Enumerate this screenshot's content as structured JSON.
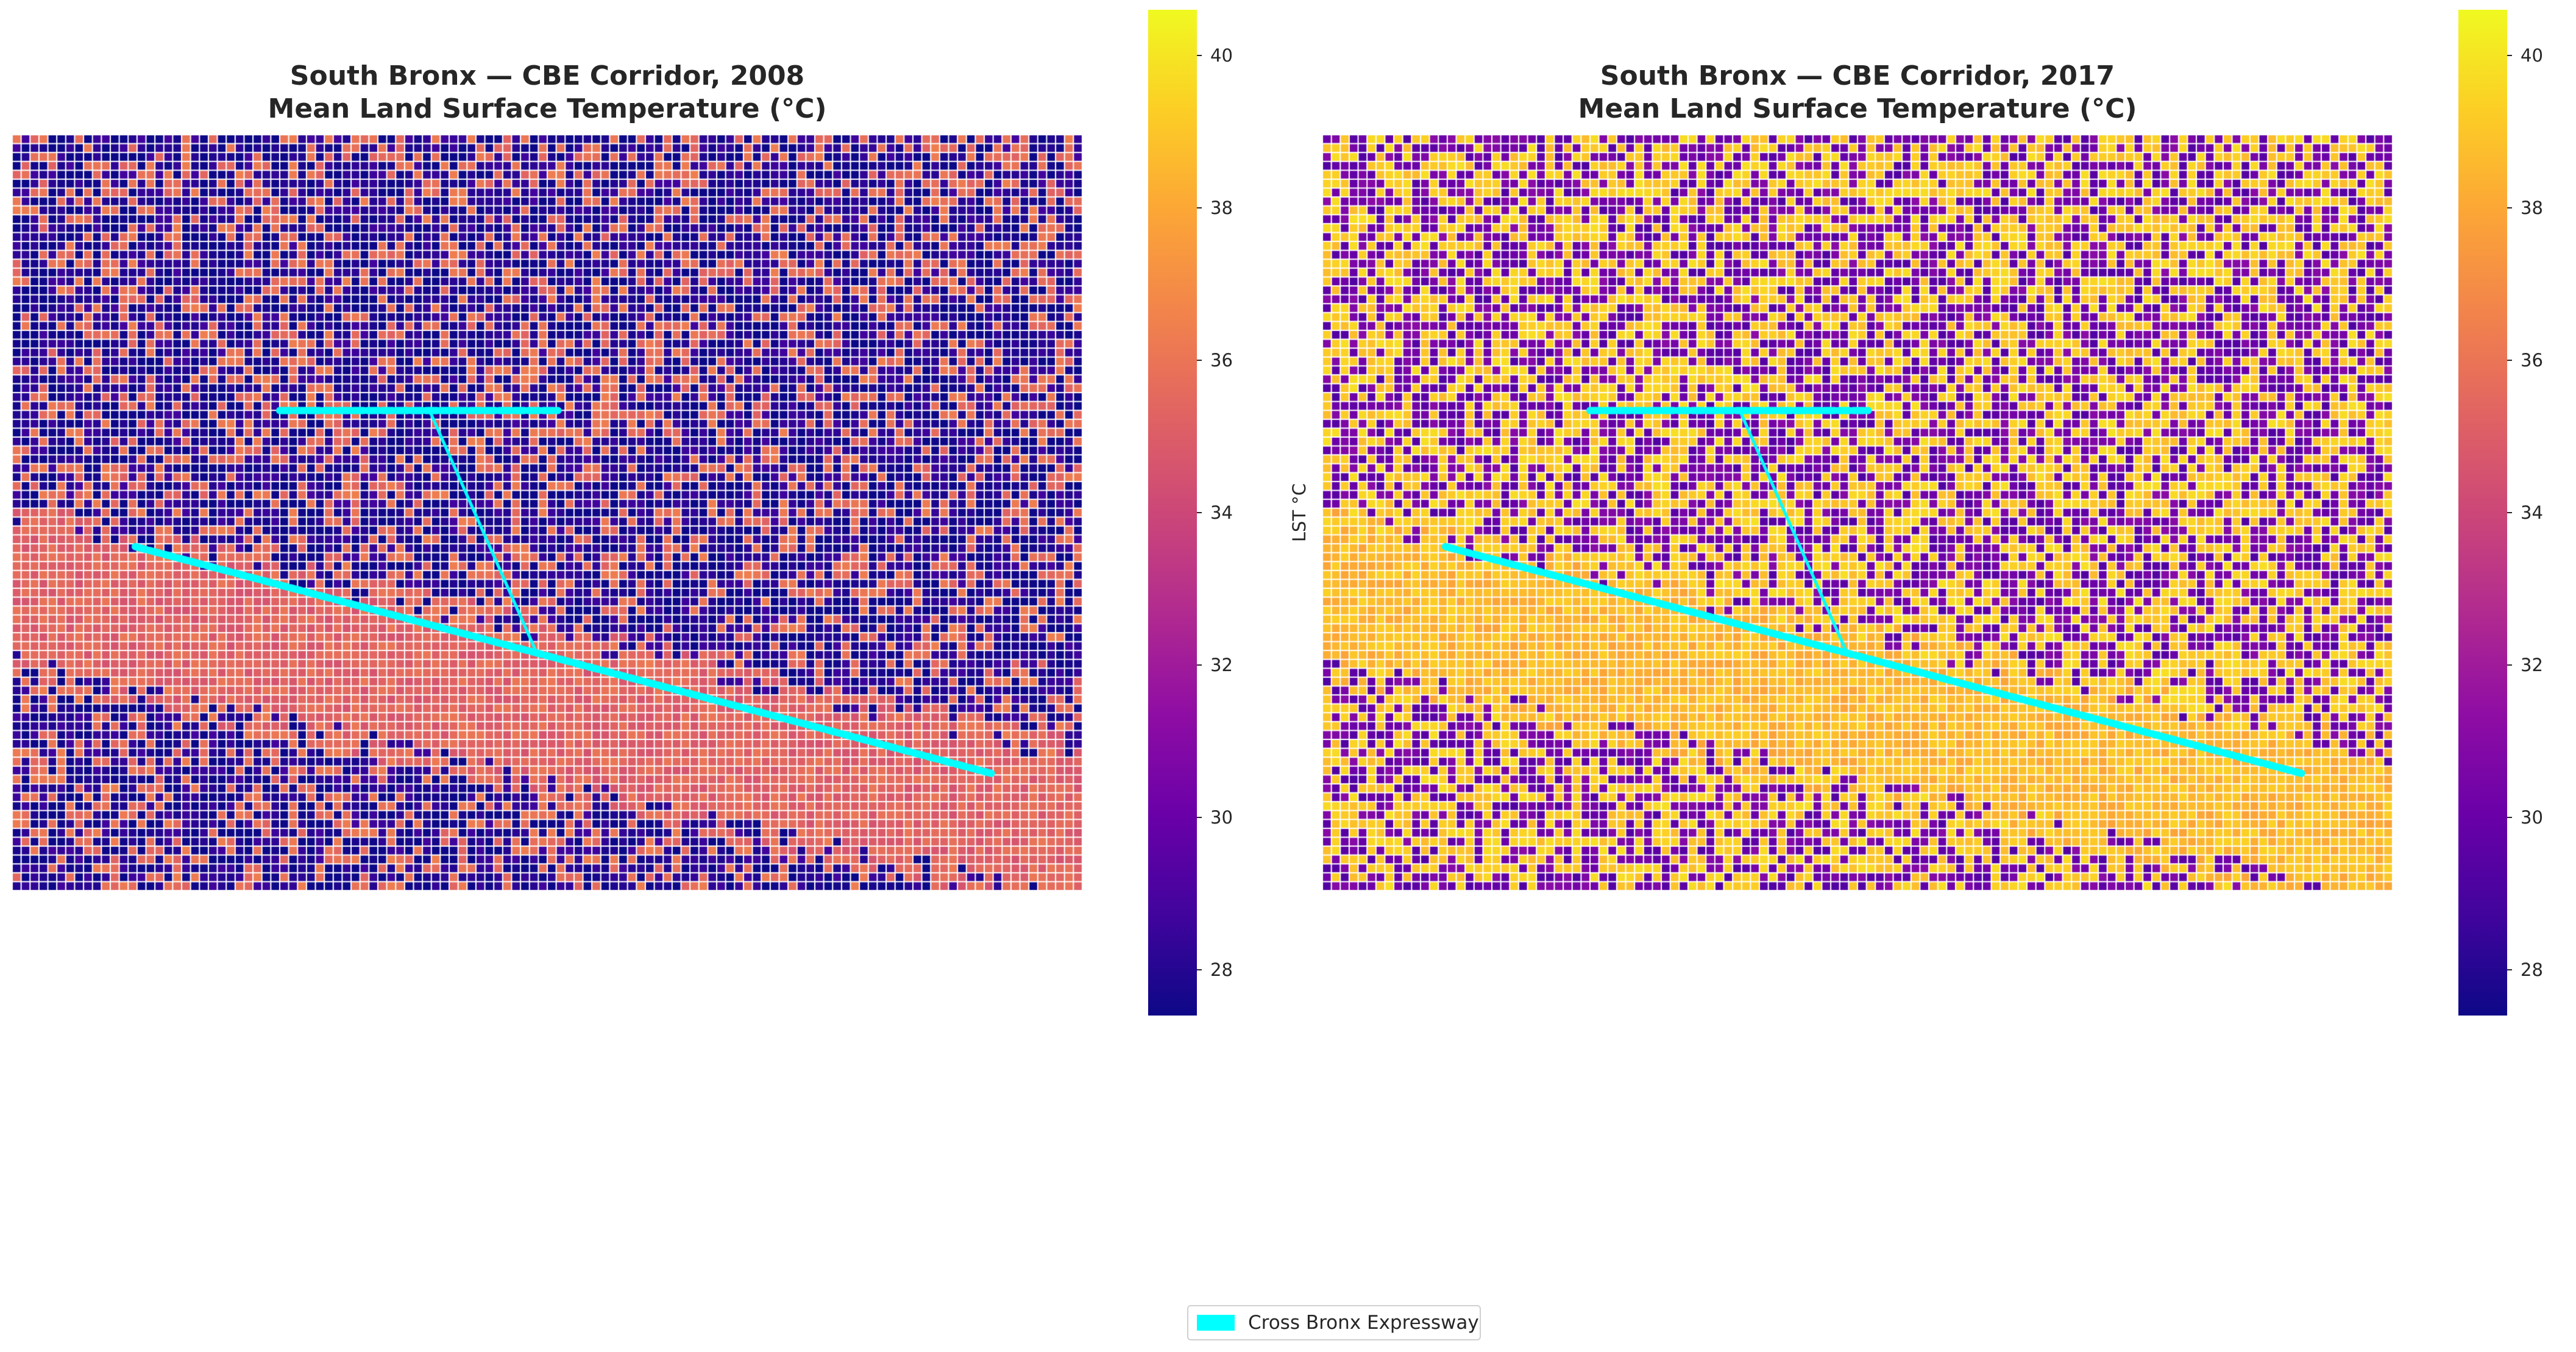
{
  "colors": {
    "expressway": "#00ffff",
    "colormap": "plasma",
    "cell_border": "#ffffff"
  },
  "chart_data": [
    {
      "type": "heatmap",
      "title": "South Bronx — CBE Corridor, 2008\nMean Land Surface Temperature (°C)",
      "title_line1": "South Bronx — CBE Corridor, 2008",
      "title_line2": "Mean Land Surface Temperature (°C)",
      "year": 2008,
      "colorbar": {
        "label": "LST °C",
        "range": [
          27.4,
          40.6
        ],
        "ticks": [
          28,
          30,
          32,
          34,
          36,
          38,
          40
        ],
        "colormap": "plasma"
      },
      "grid": {
        "cols": 120,
        "rows": 85
      },
      "summary": {
        "background_low_c": 27.8,
        "background_high_c": 35.8,
        "background_high_fraction": 0.3,
        "corridor_mean_c": 35.3
      },
      "corridor_band": "diagonal band from left-middle to lower-right, roughly parallel to the expressway and just below it",
      "expressway": {
        "label": "Cross Bronx Expressway",
        "segments": [
          {
            "name": "main-line",
            "from": [
              0.115,
              0.545
            ],
            "to": [
              0.915,
              0.845
            ]
          },
          {
            "name": "northern-spur",
            "from": [
              0.25,
              0.365
            ],
            "to": [
              0.51,
              0.365
            ]
          },
          {
            "name": "connector",
            "from": [
              0.39,
              0.365
            ],
            "to": [
              0.49,
              0.685
            ]
          }
        ]
      },
      "axis": {
        "visible": false,
        "grid": false
      }
    },
    {
      "type": "heatmap",
      "title": "South Bronx — CBE Corridor, 2017\nMean Land Surface Temperature (°C)",
      "title_line1": "South Bronx — CBE Corridor, 2017",
      "title_line2": "Mean Land Surface Temperature (°C)",
      "year": 2017,
      "colorbar": {
        "label": "LST °C",
        "range": [
          27.4,
          40.6
        ],
        "ticks": [
          28,
          30,
          32,
          34,
          36,
          38,
          40
        ],
        "colormap": "plasma"
      },
      "grid": {
        "cols": 120,
        "rows": 85
      },
      "summary": {
        "background_low_c": 30.2,
        "background_high_c": 39.2,
        "background_high_fraction": 0.5,
        "corridor_mean_c": 38.6
      },
      "corridor_band": "diagonal band from left-middle to lower-right, roughly parallel to the expressway and just below it",
      "expressway": {
        "label": "Cross Bronx Expressway",
        "segments": [
          {
            "name": "main-line",
            "from": [
              0.115,
              0.545
            ],
            "to": [
              0.915,
              0.845
            ]
          },
          {
            "name": "northern-spur",
            "from": [
              0.25,
              0.365
            ],
            "to": [
              0.51,
              0.365
            ]
          },
          {
            "name": "connector",
            "from": [
              0.39,
              0.365
            ],
            "to": [
              0.49,
              0.685
            ]
          }
        ]
      },
      "axis": {
        "visible": false,
        "grid": false
      }
    }
  ],
  "legend": {
    "placement": "bottom-center",
    "items": [
      {
        "label": "Cross Bronx Expressway",
        "color": "#00ffff"
      }
    ]
  }
}
